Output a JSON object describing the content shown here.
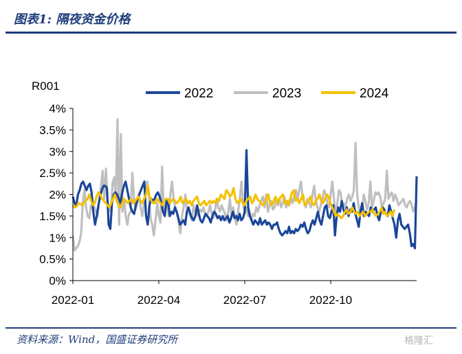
{
  "header": {
    "title": "图表1:  隔夜资金价格"
  },
  "footer": {
    "source": "资料来源：Wind，国盛证券研究所",
    "watermark": "格隆汇"
  },
  "colors": {
    "2022": "#1a4699",
    "2023": "#bfbfbf",
    "2024": "#f5c000"
  },
  "chart_data": {
    "type": "line",
    "ylabel": "R001",
    "ylim": [
      0,
      4
    ],
    "yticks": [
      "0%",
      "0.5%",
      "1%",
      "1.5%",
      "2%",
      "2.5%",
      "3%",
      "3.5%",
      "4%"
    ],
    "xticks": [
      "2022-01",
      "2022-04",
      "2022-07",
      "2022-10"
    ],
    "legend_position": "top",
    "series": [
      {
        "name": "2022",
        "values": [
          1.95,
          1.8,
          1.75,
          2.0,
          2.1,
          2.25,
          2.3,
          2.2,
          2.1,
          2.2,
          2.25,
          2.05,
          1.6,
          1.3,
          1.5,
          1.75,
          1.95,
          2.1,
          2.2,
          2.2,
          2.15,
          1.3,
          1.2,
          1.8,
          2.0,
          2.05,
          2.0,
          1.9,
          1.8,
          2.05,
          2.2,
          2.3,
          2.1,
          1.9,
          1.7,
          1.6,
          1.55,
          1.75,
          1.9,
          2.0,
          2.1,
          2.2,
          2.3,
          1.5,
          1.3,
          1.75,
          1.9,
          1.85,
          1.9,
          2.0,
          2.05,
          1.95,
          1.8,
          1.6,
          1.5,
          1.85,
          1.8,
          1.5,
          1.6,
          1.55,
          1.7,
          1.6,
          1.45,
          1.3,
          1.35,
          1.4,
          1.3,
          1.6,
          1.7,
          1.55,
          1.45,
          1.4,
          1.5,
          1.75,
          1.55,
          1.4,
          1.35,
          1.45,
          1.55,
          1.5,
          1.45,
          1.35,
          1.5,
          1.6,
          1.55,
          1.45,
          1.5,
          1.4,
          1.5,
          1.4,
          1.45,
          1.5,
          1.35,
          1.45,
          1.6,
          1.45,
          1.5,
          1.4,
          1.55,
          1.4,
          1.45,
          1.6,
          3.03,
          1.7,
          1.5,
          1.4,
          1.3,
          1.4,
          1.35,
          1.3,
          1.45,
          1.3,
          1.35,
          1.4,
          1.3,
          1.35,
          1.3,
          1.2,
          1.3,
          1.3,
          1.35,
          1.2,
          1.1,
          1.05,
          1.1,
          1.15,
          1.1,
          1.25,
          1.1,
          1.15,
          1.1,
          1.2,
          1.15,
          1.2,
          1.3,
          1.25,
          1.35,
          1.2,
          1.1,
          1.15,
          1.3,
          1.4,
          1.3,
          1.45,
          1.6,
          1.4,
          1.3,
          1.5,
          1.7,
          1.75,
          1.5,
          1.45,
          1.6,
          1.75,
          1.05,
          1.5,
          1.7,
          1.6,
          1.85,
          1.65,
          1.55,
          1.7,
          1.5,
          1.65,
          1.6,
          1.8,
          1.55,
          1.4,
          1.25,
          1.6,
          1.8,
          1.5,
          1.6,
          1.55,
          1.5,
          1.7,
          1.6,
          1.65,
          1.7,
          1.5,
          1.4,
          1.6,
          1.7,
          1.65,
          1.55,
          1.5,
          1.75,
          1.6,
          1.45,
          1.3,
          1.0,
          1.4,
          1.55,
          1.3,
          1.25,
          1.2,
          1.25,
          1.3,
          1.1,
          0.8,
          0.85,
          0.75,
          2.42
        ]
      },
      {
        "name": "2023",
        "values": [
          1.05,
          0.7,
          0.75,
          0.8,
          0.9,
          1.1,
          1.8,
          2.1,
          1.7,
          1.5,
          1.45,
          1.75,
          1.8,
          1.7,
          1.6,
          1.5,
          1.9,
          2.2,
          2.55,
          1.9,
          2.6,
          1.85,
          1.65,
          1.6,
          2.25,
          2.4,
          1.9,
          3.75,
          1.3,
          3.4,
          1.6,
          1.9,
          1.5,
          1.3,
          1.55,
          1.6,
          2.5,
          1.9,
          1.65,
          1.8,
          2.0,
          1.7,
          1.5,
          1.8,
          2.0,
          2.3,
          1.95,
          1.45,
          1.3,
          1.05,
          1.4,
          1.8,
          1.5,
          1.35,
          2.65,
          1.6,
          1.75,
          1.8,
          1.5,
          2.0,
          2.3,
          1.9,
          1.7,
          1.55,
          1.35,
          1.1,
          1.5,
          1.7,
          2.0,
          1.65,
          1.6,
          1.5,
          1.4,
          1.75,
          1.6,
          1.55,
          1.5,
          1.65,
          1.6,
          1.7,
          1.55,
          1.5,
          1.6,
          1.75,
          1.55,
          1.45,
          1.6,
          1.9,
          1.7,
          1.6,
          1.75,
          1.65,
          1.55,
          1.4,
          1.6,
          1.9,
          1.5,
          1.7,
          1.45,
          1.3,
          1.6,
          1.9,
          2.3,
          1.8,
          1.55,
          1.7,
          1.5,
          1.6,
          1.4,
          1.55,
          1.5,
          1.7,
          1.6,
          1.75,
          1.85,
          1.95,
          1.7,
          2.0,
          1.6,
          1.75,
          1.85,
          1.65,
          1.7,
          1.9,
          1.75,
          1.9,
          1.7,
          1.8,
          1.95,
          1.7,
          1.85,
          1.75,
          1.9,
          1.8,
          2.0,
          2.1,
          1.9,
          2.1,
          2.3,
          1.95,
          1.8,
          1.7,
          1.9,
          1.8,
          1.7,
          2.0,
          2.2,
          1.85,
          1.7,
          1.6,
          1.75,
          1.9,
          2.1,
          2.0,
          1.8,
          1.7,
          2.0,
          2.3,
          1.9,
          1.5,
          1.8,
          2.1,
          2.05,
          1.75,
          1.8,
          1.7,
          1.9,
          2.0,
          1.85,
          1.95,
          2.1,
          3.2,
          2.0,
          1.7,
          1.55,
          1.65,
          2.0,
          1.85,
          1.65,
          1.8,
          2.3,
          1.7,
          1.85,
          2.05,
          2.0,
          2.05,
          1.95,
          1.7,
          1.8,
          1.9,
          2.55,
          1.9,
          2.0,
          2.05,
          1.85,
          2.0,
          1.9,
          1.75,
          1.8,
          1.85,
          1.9,
          1.75,
          1.7,
          1.8,
          1.85,
          1.75,
          1.6,
          1.7,
          1.85
        ]
      },
      {
        "name": "2024",
        "values": [
          1.75,
          1.7,
          1.72,
          1.8,
          1.78,
          1.75,
          1.8,
          1.85,
          1.9,
          2.0,
          1.85,
          1.75,
          1.8,
          1.95,
          2.05,
          2.0,
          1.9,
          1.85,
          1.8,
          1.75,
          1.7,
          1.8,
          1.9,
          2.0,
          1.85,
          1.75,
          1.7,
          1.8,
          1.9,
          1.85,
          1.8,
          1.85,
          1.9,
          1.8,
          1.85,
          1.9,
          1.95,
          1.85,
          1.8,
          1.9,
          2.0,
          2.2,
          1.95,
          1.85,
          1.8,
          1.8,
          1.9,
          1.85,
          1.8,
          1.75,
          1.85,
          1.9,
          1.9,
          1.8,
          1.85,
          1.9,
          1.85,
          1.8,
          1.85,
          1.95,
          1.8,
          1.85,
          1.9,
          1.8,
          1.85,
          1.75,
          1.85,
          1.9,
          1.95,
          1.8,
          1.75,
          1.8,
          1.85,
          1.75,
          1.8,
          1.85,
          1.8,
          1.85,
          1.8,
          1.9,
          1.85,
          2.0,
          1.95,
          1.9,
          2.1,
          2.05,
          1.95,
          2.0,
          2.15,
          1.9,
          1.8,
          1.85,
          1.9,
          1.8,
          1.75,
          1.85,
          1.9,
          1.95,
          1.8,
          1.85,
          2.0,
          1.9,
          1.85,
          1.8,
          1.75,
          1.8,
          1.9,
          2.0,
          1.8,
          1.75,
          1.85,
          1.95,
          1.8,
          1.9,
          1.95,
          2.0,
          1.8,
          1.85,
          1.75,
          1.9,
          2.05,
          2.1,
          1.85,
          1.9,
          1.8,
          1.9,
          2.0,
          1.75,
          1.8,
          1.85,
          1.95,
          1.8,
          1.75,
          1.85,
          1.9,
          2.0,
          1.85,
          1.8,
          1.9,
          2.0,
          1.95,
          1.8,
          1.7,
          1.6,
          1.5,
          1.55,
          1.5,
          1.45,
          1.5,
          1.6,
          1.65,
          1.55,
          1.6,
          1.7,
          1.6,
          1.55,
          1.6,
          1.5,
          1.55,
          1.6,
          1.5,
          1.55,
          1.6,
          1.6,
          1.65,
          1.55,
          1.5,
          1.55,
          1.6,
          1.7,
          1.55,
          1.6,
          1.5,
          1.55,
          1.6,
          1.5,
          1.65
        ]
      }
    ]
  }
}
